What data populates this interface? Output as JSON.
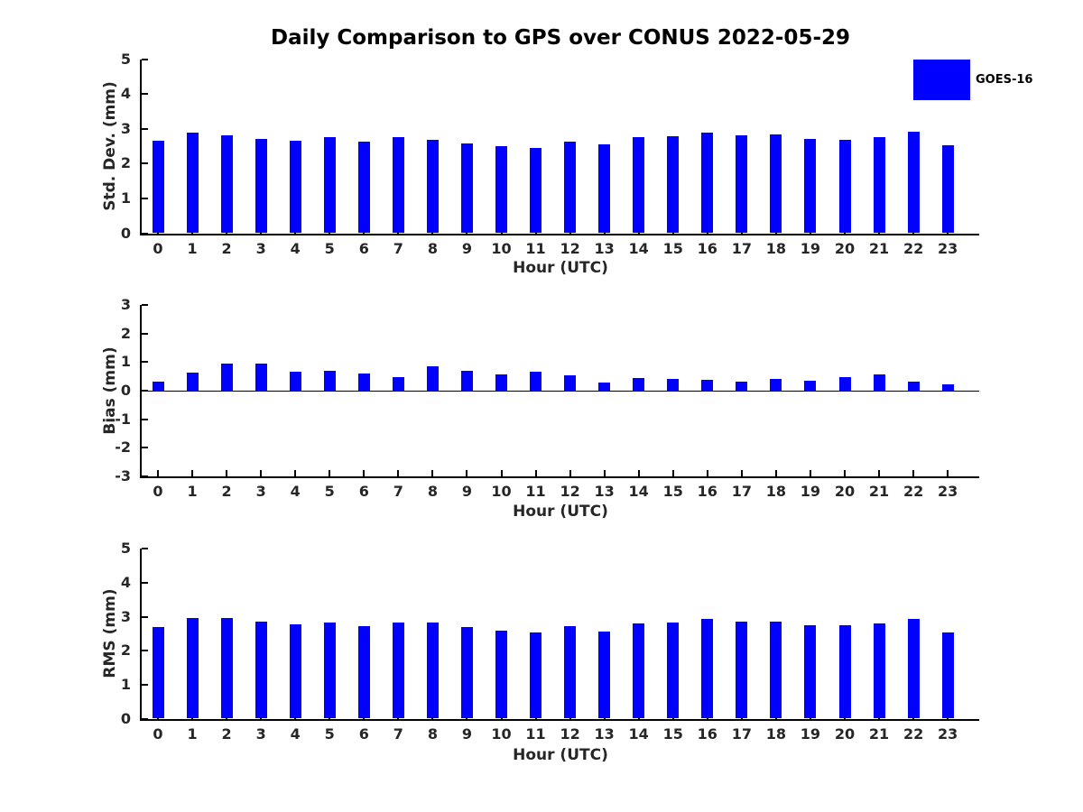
{
  "title": "Daily Comparison to GPS over CONUS 2022-05-29",
  "legend": {
    "label": "GOES-16",
    "color": "#0000ff"
  },
  "colors": {
    "bar": "#0000ff",
    "axis": "#000000",
    "text": "#262626"
  },
  "chart_data": [
    {
      "type": "bar",
      "name": "std-dev",
      "ylabel": "Std. Dev. (mm)",
      "xlabel": "Hour (UTC)",
      "categories": [
        "0",
        "1",
        "2",
        "3",
        "4",
        "5",
        "6",
        "7",
        "8",
        "9",
        "10",
        "11",
        "12",
        "13",
        "14",
        "15",
        "16",
        "17",
        "18",
        "19",
        "20",
        "21",
        "22",
        "23"
      ],
      "series": [
        {
          "name": "GOES-16",
          "values": [
            2.66,
            2.88,
            2.82,
            2.7,
            2.66,
            2.75,
            2.64,
            2.77,
            2.69,
            2.59,
            2.51,
            2.46,
            2.63,
            2.54,
            2.77,
            2.79,
            2.89,
            2.82,
            2.83,
            2.71,
            2.69,
            2.75,
            2.92,
            2.53
          ]
        }
      ],
      "ylim": [
        0,
        5
      ],
      "yticks": [
        0,
        1,
        2,
        3,
        4,
        5
      ],
      "grid": false,
      "legend_position": "top-right-outside"
    },
    {
      "type": "bar",
      "name": "bias",
      "ylabel": "Bias (mm)",
      "xlabel": "Hour (UTC)",
      "categories": [
        "0",
        "1",
        "2",
        "3",
        "4",
        "5",
        "6",
        "7",
        "8",
        "9",
        "10",
        "11",
        "12",
        "13",
        "14",
        "15",
        "16",
        "17",
        "18",
        "19",
        "20",
        "21",
        "22",
        "23"
      ],
      "series": [
        {
          "name": "GOES-16",
          "values": [
            0.31,
            0.62,
            0.95,
            0.96,
            0.66,
            0.7,
            0.59,
            0.48,
            0.87,
            0.7,
            0.56,
            0.66,
            0.55,
            0.28,
            0.45,
            0.42,
            0.38,
            0.31,
            0.42,
            0.34,
            0.46,
            0.57,
            0.31,
            0.21
          ]
        }
      ],
      "ylim": [
        -3,
        3
      ],
      "yticks": [
        -3,
        -2,
        -1,
        0,
        1,
        2,
        3
      ],
      "grid": false
    },
    {
      "type": "bar",
      "name": "rms",
      "ylabel": "RMS (mm)",
      "xlabel": "Hour (UTC)",
      "categories": [
        "0",
        "1",
        "2",
        "3",
        "4",
        "5",
        "6",
        "7",
        "8",
        "9",
        "10",
        "11",
        "12",
        "13",
        "14",
        "15",
        "16",
        "17",
        "18",
        "19",
        "20",
        "21",
        "22",
        "23"
      ],
      "series": [
        {
          "name": "GOES-16",
          "values": [
            2.69,
            2.95,
            2.97,
            2.86,
            2.77,
            2.83,
            2.71,
            2.82,
            2.82,
            2.69,
            2.58,
            2.55,
            2.71,
            2.56,
            2.79,
            2.84,
            2.93,
            2.85,
            2.85,
            2.74,
            2.74,
            2.8,
            2.94,
            2.53
          ]
        }
      ],
      "ylim": [
        0,
        5
      ],
      "yticks": [
        0,
        1,
        2,
        3,
        4,
        5
      ],
      "grid": false
    }
  ]
}
